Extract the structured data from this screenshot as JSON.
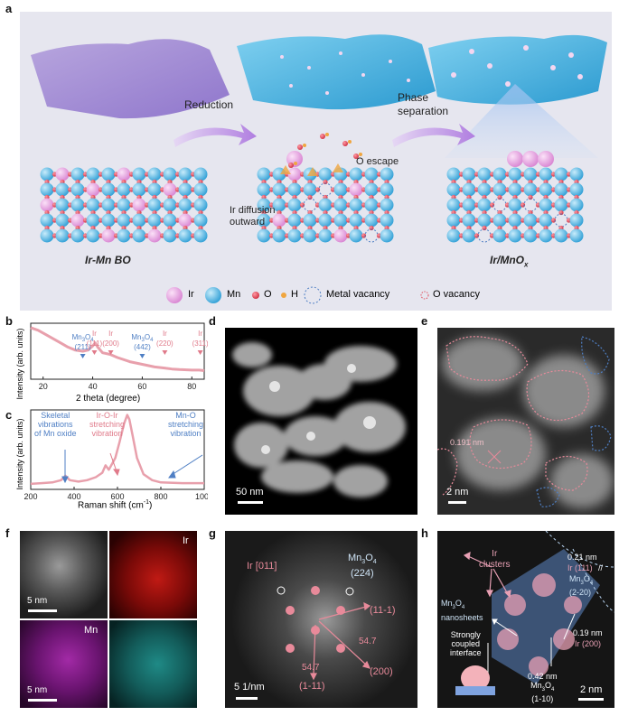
{
  "panel_letters": {
    "a": "a",
    "b": "b",
    "c": "c",
    "d": "d",
    "e": "e",
    "f": "f",
    "g": "g",
    "h": "h"
  },
  "colors": {
    "panel_a_bg": "#e6e6ef",
    "ir": "#e9a6e4",
    "mn": "#5ac2ee",
    "o": "#e0505f",
    "h": "#f0a640",
    "accent_pink": "#e88a9a",
    "accent_blue": "#4f7fc4"
  },
  "panel_a": {
    "reduction_label": "Reduction",
    "phase_separation_label": "Phase\nseparation",
    "o_escape_label": "O escape",
    "ir_diffusion_label": "Ir diffusion\noutward",
    "left_caption": "Ir-Mn BO",
    "right_caption_main": "Ir/MnO",
    "right_caption_sub": "x",
    "legend": {
      "ir": "Ir",
      "mn": "Mn",
      "o": "O",
      "h": "H",
      "metal_vacancy": "Metal vacancy",
      "o_vacancy": "O vacancy"
    }
  },
  "panel_b": {
    "ylabel": "Intensity (arb. units)",
    "xlabel": "2 theta (degree)",
    "xticks": [
      "20",
      "40",
      "60",
      "80"
    ],
    "peaks": [
      {
        "phase": "Mn3O4",
        "hkl": "(211)",
        "x": 36,
        "color": "#4f7fc4"
      },
      {
        "phase": "Ir",
        "hkl": "(111)",
        "x": 40.7,
        "color": "#e07a8a"
      },
      {
        "phase": "Ir",
        "hkl": "(200)",
        "x": 47.3,
        "color": "#e07a8a"
      },
      {
        "phase": "Mn3O4",
        "hkl": "(442)",
        "x": 60,
        "color": "#4f7fc4"
      },
      {
        "phase": "Ir",
        "hkl": "(220)",
        "x": 69.1,
        "color": "#e07a8a"
      },
      {
        "phase": "Ir",
        "hkl": "(311)",
        "x": 83.4,
        "color": "#e07a8a"
      }
    ],
    "chart_data": {
      "type": "line",
      "xlabel": "2 theta (degree)",
      "ylabel": "Intensity (arb. units)",
      "xlim": [
        15,
        85
      ],
      "x": [
        15,
        18,
        21,
        24,
        27,
        30,
        33,
        36,
        38,
        40,
        41,
        42,
        44,
        47,
        50,
        55,
        60,
        65,
        69,
        72,
        75,
        80,
        83,
        85
      ],
      "y": [
        0.95,
        0.9,
        0.82,
        0.74,
        0.66,
        0.58,
        0.52,
        0.5,
        0.52,
        0.6,
        0.66,
        0.58,
        0.47,
        0.44,
        0.38,
        0.3,
        0.25,
        0.2,
        0.18,
        0.16,
        0.15,
        0.14,
        0.14,
        0.13
      ]
    }
  },
  "panel_c": {
    "ylabel": "Intensity (arb. units)",
    "xlabel": "Raman shift (cm",
    "xlabel_sup": "-1",
    "xlabel_end": ")",
    "xticks": [
      "200",
      "400",
      "600",
      "800",
      "1000"
    ],
    "annotations": {
      "skeletal": "Skeletal\nvibrations\nof Mn oxide",
      "iroir": "Ir-O-Ir\nstretching\nvibration",
      "mno": "Mn-O\nstretching\nvibration"
    },
    "chart_data": {
      "type": "line",
      "xlabel": "Raman shift (cm-1)",
      "ylabel": "Intensity (arb. units)",
      "xlim": [
        200,
        1000
      ],
      "x": [
        200,
        250,
        300,
        340,
        360,
        380,
        420,
        460,
        500,
        530,
        545,
        560,
        590,
        610,
        630,
        645,
        655,
        670,
        690,
        720,
        760,
        800,
        900,
        1000
      ],
      "y": [
        0.05,
        0.06,
        0.07,
        0.1,
        0.16,
        0.1,
        0.08,
        0.1,
        0.14,
        0.2,
        0.3,
        0.24,
        0.4,
        0.62,
        0.86,
        0.98,
        0.92,
        0.7,
        0.4,
        0.18,
        0.1,
        0.07,
        0.06,
        0.06
      ]
    }
  },
  "panel_d": {
    "scale_bar": "50 nm"
  },
  "panel_e": {
    "distance": "0.191 nm",
    "scale_bar": "2 nm"
  },
  "panel_f": {
    "ir_label": "Ir",
    "mn_label": "Mn",
    "scale_bar": "5 nm"
  },
  "panel_g": {
    "ir_zone": "Ir [011]",
    "mn_label": "Mn",
    "mn_label_end": "O",
    "mn_hkl": "(224)",
    "hkl_111": "(11-1)",
    "hkl_200": "(200)",
    "hkl_1m11": "(1-11)",
    "angle1": "54.7",
    "angle2": "54.7",
    "scale_bar": "5 1/nm"
  },
  "panel_h": {
    "ir_clusters": "Ir\nclusters",
    "d021": "0.21 nm",
    "ir111": "Ir (111)",
    "slash": "//",
    "mn3o4_a": "Mn",
    "hkl_2m20": "(2-20)",
    "d019": "0.19 nm",
    "ir200": "Ir (200)",
    "nanosheets_a": "Mn",
    "nanosheets_b": "nanosheets",
    "interface": "Strongly\ncoupled\ninterface",
    "d042": "0.42 nm",
    "hkl_1m10": "(1-10)",
    "scale_bar": "2 nm"
  }
}
